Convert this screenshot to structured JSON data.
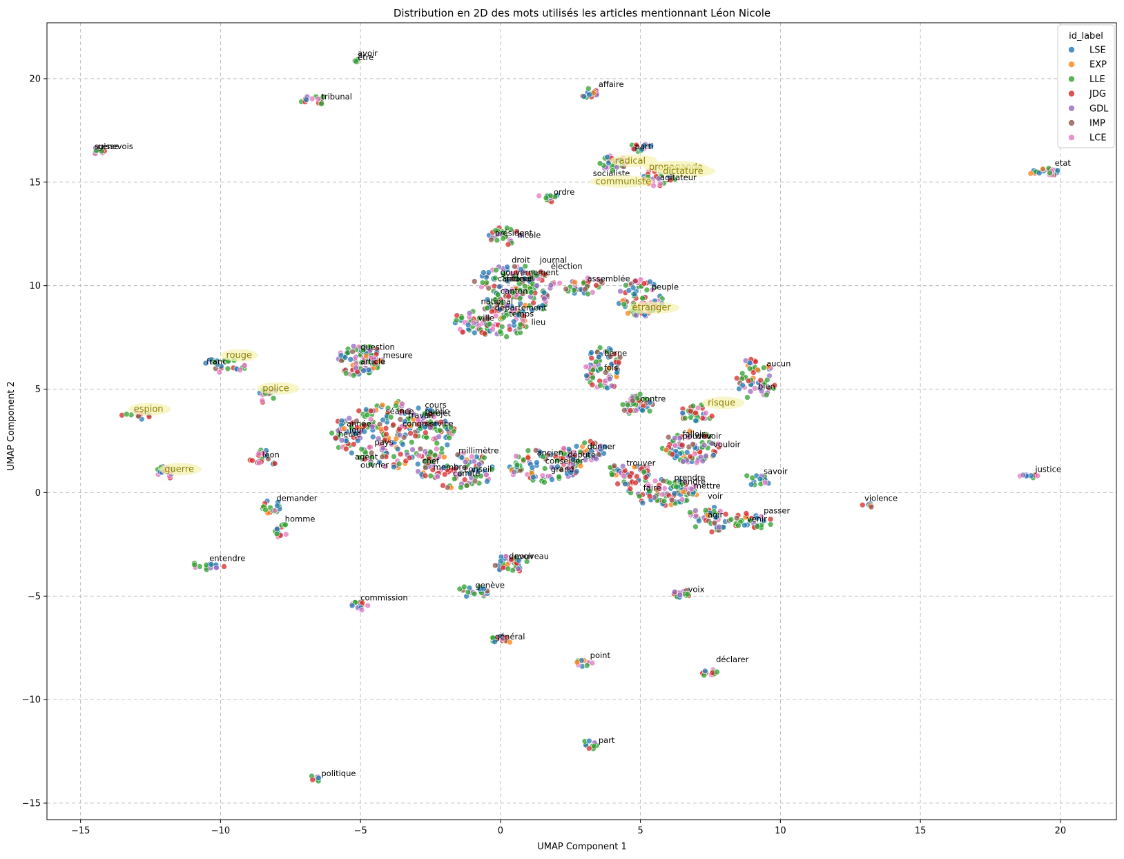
{
  "chart_data": {
    "type": "scatter",
    "title": "Distribution en 2D des mots utilisés les articles mentionnant Léon Nicole",
    "xlabel": "UMAP Component 1",
    "ylabel": "UMAP Component 2",
    "xlim": [
      -16.2,
      22.0
    ],
    "ylim": [
      -15.8,
      22.7
    ],
    "xticks": [
      -15,
      -10,
      -5,
      0,
      5,
      10,
      15,
      20
    ],
    "yticks": [
      -15,
      -10,
      -5,
      0,
      5,
      10,
      15,
      20
    ],
    "grid": true,
    "legend": {
      "title": "id_label",
      "placement": "top-right",
      "entries": [
        {
          "name": "LSE",
          "color": "#1f77b4"
        },
        {
          "name": "EXP",
          "color": "#ff7f0e"
        },
        {
          "name": "LLE",
          "color": "#2ca02c"
        },
        {
          "name": "JDG",
          "color": "#d62728"
        },
        {
          "name": "GDL",
          "color": "#9467bd"
        },
        {
          "name": "IMP",
          "color": "#8c564b"
        },
        {
          "name": "LCE",
          "color": "#e377c2"
        }
      ]
    },
    "clusters": [
      {
        "x": -5.2,
        "y": 20.9,
        "rx": 0.15,
        "ry": 0.1,
        "n": 6
      },
      {
        "x": -6.7,
        "y": 19.0,
        "rx": 0.6,
        "ry": 0.2,
        "n": 14
      },
      {
        "x": -14.4,
        "y": 16.5,
        "rx": 0.25,
        "ry": 0.15,
        "n": 10
      },
      {
        "x": 3.2,
        "y": 19.3,
        "rx": 0.3,
        "ry": 0.25,
        "n": 14
      },
      {
        "x": 5.0,
        "y": 16.7,
        "rx": 0.35,
        "ry": 0.2,
        "n": 16
      },
      {
        "x": 4.0,
        "y": 15.9,
        "rx": 0.5,
        "ry": 0.4,
        "n": 24
      },
      {
        "x": 5.6,
        "y": 15.2,
        "rx": 0.6,
        "ry": 0.4,
        "n": 24
      },
      {
        "x": 19.5,
        "y": 15.5,
        "rx": 0.65,
        "ry": 0.15,
        "n": 22
      },
      {
        "x": 1.7,
        "y": 14.3,
        "rx": 0.35,
        "ry": 0.3,
        "n": 12
      },
      {
        "x": 0.2,
        "y": 12.4,
        "rx": 0.6,
        "ry": 0.45,
        "n": 26
      },
      {
        "x": 0.5,
        "y": 9.8,
        "rx": 1.5,
        "ry": 1.2,
        "n": 150
      },
      {
        "x": -0.3,
        "y": 8.2,
        "rx": 1.4,
        "ry": 0.7,
        "n": 90
      },
      {
        "x": 2.9,
        "y": 10.0,
        "rx": 0.8,
        "ry": 0.4,
        "n": 30
      },
      {
        "x": 5.0,
        "y": 9.4,
        "rx": 0.8,
        "ry": 0.9,
        "n": 70
      },
      {
        "x": -5.0,
        "y": 6.4,
        "rx": 0.8,
        "ry": 0.8,
        "n": 90
      },
      {
        "x": 3.7,
        "y": 6.0,
        "rx": 0.7,
        "ry": 1.0,
        "n": 70
      },
      {
        "x": -9.9,
        "y": 6.1,
        "rx": 0.8,
        "ry": 0.4,
        "n": 24
      },
      {
        "x": -8.3,
        "y": 4.7,
        "rx": 0.35,
        "ry": 0.4,
        "n": 12
      },
      {
        "x": -13.0,
        "y": 3.7,
        "rx": 0.5,
        "ry": 0.2,
        "n": 10
      },
      {
        "x": -12.0,
        "y": 1.0,
        "rx": 0.35,
        "ry": 0.3,
        "n": 12
      },
      {
        "x": -8.5,
        "y": 1.6,
        "rx": 0.45,
        "ry": 0.5,
        "n": 20
      },
      {
        "x": -3.8,
        "y": 2.8,
        "rx": 2.2,
        "ry": 1.6,
        "n": 260
      },
      {
        "x": -1.6,
        "y": 1.1,
        "rx": 1.4,
        "ry": 0.9,
        "n": 90
      },
      {
        "x": 4.9,
        "y": 4.2,
        "rx": 0.6,
        "ry": 0.5,
        "n": 50
      },
      {
        "x": 7.0,
        "y": 3.8,
        "rx": 0.6,
        "ry": 0.4,
        "n": 30
      },
      {
        "x": 9.1,
        "y": 5.4,
        "rx": 0.7,
        "ry": 1.1,
        "n": 50
      },
      {
        "x": 6.8,
        "y": 2.2,
        "rx": 1.0,
        "ry": 0.8,
        "n": 80
      },
      {
        "x": 1.6,
        "y": 1.3,
        "rx": 1.3,
        "ry": 0.8,
        "n": 90
      },
      {
        "x": 3.0,
        "y": 2.0,
        "rx": 0.8,
        "ry": 0.5,
        "n": 40
      },
      {
        "x": 4.5,
        "y": 0.9,
        "rx": 0.9,
        "ry": 0.5,
        "n": 50
      },
      {
        "x": 5.8,
        "y": 0.0,
        "rx": 1.3,
        "ry": 0.6,
        "n": 90
      },
      {
        "x": 7.5,
        "y": -1.3,
        "rx": 0.8,
        "ry": 0.6,
        "n": 40
      },
      {
        "x": 9.0,
        "y": -1.4,
        "rx": 0.8,
        "ry": 0.4,
        "n": 30
      },
      {
        "x": 9.1,
        "y": 0.6,
        "rx": 0.5,
        "ry": 0.3,
        "n": 16
      },
      {
        "x": 18.9,
        "y": 0.8,
        "rx": 0.35,
        "ry": 0.12,
        "n": 8
      },
      {
        "x": 13.1,
        "y": -0.6,
        "rx": 0.25,
        "ry": 0.08,
        "n": 6
      },
      {
        "x": -8.2,
        "y": -0.7,
        "rx": 0.35,
        "ry": 0.35,
        "n": 18
      },
      {
        "x": -7.9,
        "y": -1.8,
        "rx": 0.3,
        "ry": 0.35,
        "n": 14
      },
      {
        "x": -10.5,
        "y": -3.5,
        "rx": 0.6,
        "ry": 0.2,
        "n": 16
      },
      {
        "x": 0.4,
        "y": -3.4,
        "rx": 0.6,
        "ry": 0.4,
        "n": 40
      },
      {
        "x": -1.0,
        "y": -4.8,
        "rx": 0.6,
        "ry": 0.3,
        "n": 20
      },
      {
        "x": -5.0,
        "y": -5.4,
        "rx": 0.35,
        "ry": 0.3,
        "n": 12
      },
      {
        "x": 6.5,
        "y": -4.9,
        "rx": 0.3,
        "ry": 0.2,
        "n": 16
      },
      {
        "x": 0.0,
        "y": -7.1,
        "rx": 0.4,
        "ry": 0.2,
        "n": 16
      },
      {
        "x": 3.0,
        "y": -8.2,
        "rx": 0.3,
        "ry": 0.15,
        "n": 10
      },
      {
        "x": 7.5,
        "y": -8.7,
        "rx": 0.3,
        "ry": 0.2,
        "n": 12
      },
      {
        "x": 3.2,
        "y": -12.2,
        "rx": 0.2,
        "ry": 0.25,
        "n": 10
      },
      {
        "x": -6.6,
        "y": -13.8,
        "rx": 0.2,
        "ry": 0.15,
        "n": 8
      }
    ],
    "labels": [
      {
        "text": "avoir",
        "x": -5.1,
        "y": 21.1,
        "highlight": false
      },
      {
        "text": "être",
        "x": -5.1,
        "y": 20.9,
        "highlight": false
      },
      {
        "text": "tribunal",
        "x": -6.4,
        "y": 19.0,
        "highlight": false
      },
      {
        "text": "suisse",
        "x": -14.5,
        "y": 16.6,
        "highlight": false
      },
      {
        "text": "genevois",
        "x": -14.4,
        "y": 16.6,
        "highlight": false
      },
      {
        "text": "affaire",
        "x": 3.5,
        "y": 19.6,
        "highlight": false
      },
      {
        "text": "parti",
        "x": 4.8,
        "y": 16.6,
        "highlight": false
      },
      {
        "text": "radical",
        "x": 4.1,
        "y": 15.9,
        "highlight": true
      },
      {
        "text": "propagande",
        "x": 5.3,
        "y": 15.6,
        "highlight": true
      },
      {
        "text": "dictature",
        "x": 5.8,
        "y": 15.4,
        "highlight": true
      },
      {
        "text": "socialiste",
        "x": 3.3,
        "y": 15.3,
        "highlight": false
      },
      {
        "text": "agitateur",
        "x": 5.7,
        "y": 15.1,
        "highlight": false
      },
      {
        "text": "communiste",
        "x": 3.4,
        "y": 14.9,
        "highlight": true
      },
      {
        "text": "etat",
        "x": 19.8,
        "y": 15.8,
        "highlight": false
      },
      {
        "text": "ordre",
        "x": 1.9,
        "y": 14.4,
        "highlight": false
      },
      {
        "text": "président",
        "x": -0.2,
        "y": 12.4,
        "highlight": false
      },
      {
        "text": "nicole",
        "x": 0.6,
        "y": 12.3,
        "highlight": false
      },
      {
        "text": "droit",
        "x": 0.4,
        "y": 11.1,
        "highlight": false
      },
      {
        "text": "journal",
        "x": 1.4,
        "y": 11.1,
        "highlight": false
      },
      {
        "text": "élection",
        "x": 1.8,
        "y": 10.8,
        "highlight": false
      },
      {
        "text": "gouvernement",
        "x": 0.0,
        "y": 10.5,
        "highlight": false
      },
      {
        "text": "fédéral",
        "x": 0.2,
        "y": 10.2,
        "highlight": false
      },
      {
        "text": "cantonal",
        "x": -0.1,
        "y": 10.2,
        "highlight": false
      },
      {
        "text": "assemblée",
        "x": 3.1,
        "y": 10.2,
        "highlight": false
      },
      {
        "text": "peuple",
        "x": 5.4,
        "y": 9.8,
        "highlight": false
      },
      {
        "text": "canton",
        "x": 0.0,
        "y": 9.6,
        "highlight": false
      },
      {
        "text": "national",
        "x": -0.7,
        "y": 9.1,
        "highlight": false
      },
      {
        "text": "département",
        "x": -0.2,
        "y": 8.8,
        "highlight": false
      },
      {
        "text": "étranger",
        "x": 4.7,
        "y": 8.8,
        "highlight": true
      },
      {
        "text": "temps",
        "x": 0.3,
        "y": 8.5,
        "highlight": false
      },
      {
        "text": "ville",
        "x": -0.8,
        "y": 8.3,
        "highlight": false
      },
      {
        "text": "lieu",
        "x": 1.1,
        "y": 8.1,
        "highlight": false
      },
      {
        "text": "question",
        "x": -5.0,
        "y": 6.9,
        "highlight": false
      },
      {
        "text": "mesure",
        "x": -4.2,
        "y": 6.5,
        "highlight": false
      },
      {
        "text": "article",
        "x": -5.0,
        "y": 6.2,
        "highlight": false
      },
      {
        "text": "berne",
        "x": 3.7,
        "y": 6.6,
        "highlight": false
      },
      {
        "text": "fois",
        "x": 3.7,
        "y": 5.9,
        "highlight": false
      },
      {
        "text": "rouge",
        "x": -9.8,
        "y": 6.5,
        "highlight": true
      },
      {
        "text": "franc",
        "x": -10.5,
        "y": 6.2,
        "highlight": false
      },
      {
        "text": "aucun",
        "x": 9.5,
        "y": 6.1,
        "highlight": false
      },
      {
        "text": "police",
        "x": -8.5,
        "y": 4.9,
        "highlight": true
      },
      {
        "text": "bien",
        "x": 9.2,
        "y": 5.0,
        "highlight": false
      },
      {
        "text": "contre",
        "x": 5.0,
        "y": 4.4,
        "highlight": false
      },
      {
        "text": "risque",
        "x": 7.4,
        "y": 4.2,
        "highlight": true
      },
      {
        "text": "espion",
        "x": -13.1,
        "y": 3.9,
        "highlight": true
      },
      {
        "text": "cours",
        "x": -2.7,
        "y": 4.1,
        "highlight": false
      },
      {
        "text": "séance",
        "x": -4.1,
        "y": 3.8,
        "highlight": false
      },
      {
        "text": "public",
        "x": -2.7,
        "y": 3.8,
        "highlight": false
      },
      {
        "text": "travail",
        "x": -3.3,
        "y": 3.6,
        "highlight": false
      },
      {
        "text": "projet",
        "x": -2.6,
        "y": 3.7,
        "highlight": false
      },
      {
        "text": "année",
        "x": -5.5,
        "y": 3.2,
        "highlight": false
      },
      {
        "text": "congrès",
        "x": -3.5,
        "y": 3.2,
        "highlight": false
      },
      {
        "text": "service",
        "x": -2.7,
        "y": 3.2,
        "highlight": false
      },
      {
        "text": "jour",
        "x": -5.4,
        "y": 2.9,
        "highlight": false
      },
      {
        "text": "heure",
        "x": -5.8,
        "y": 2.7,
        "highlight": false
      },
      {
        "text": "falloir",
        "x": 6.5,
        "y": 2.7,
        "highlight": false
      },
      {
        "text": "pouvoir",
        "x": 6.5,
        "y": 2.6,
        "highlight": false
      },
      {
        "text": "devoir",
        "x": 7.0,
        "y": 2.6,
        "highlight": false
      },
      {
        "text": "pays",
        "x": -4.5,
        "y": 2.3,
        "highlight": false
      },
      {
        "text": "vouloir",
        "x": 7.6,
        "y": 2.2,
        "highlight": false
      },
      {
        "text": "millimètre",
        "x": -1.5,
        "y": 1.9,
        "highlight": false
      },
      {
        "text": "donner",
        "x": 3.1,
        "y": 2.1,
        "highlight": false
      },
      {
        "text": "ancien",
        "x": 1.3,
        "y": 1.8,
        "highlight": false
      },
      {
        "text": "député",
        "x": 2.4,
        "y": 1.7,
        "highlight": false
      },
      {
        "text": "agent",
        "x": -5.2,
        "y": 1.6,
        "highlight": false
      },
      {
        "text": "léon",
        "x": -8.5,
        "y": 1.7,
        "highlight": false
      },
      {
        "text": "conseiller",
        "x": 1.6,
        "y": 1.4,
        "highlight": false
      },
      {
        "text": "chef",
        "x": -2.8,
        "y": 1.4,
        "highlight": false
      },
      {
        "text": "trouver",
        "x": 4.5,
        "y": 1.3,
        "highlight": false
      },
      {
        "text": "ouvrier",
        "x": -5.0,
        "y": 1.2,
        "highlight": false
      },
      {
        "text": "guerre",
        "x": -12.0,
        "y": 1.0,
        "highlight": true
      },
      {
        "text": "membre",
        "x": -2.4,
        "y": 1.1,
        "highlight": false
      },
      {
        "text": "grand",
        "x": 1.8,
        "y": 1.0,
        "highlight": false
      },
      {
        "text": "conseil",
        "x": -1.3,
        "y": 1.0,
        "highlight": false
      },
      {
        "text": "comité",
        "x": -1.7,
        "y": 0.8,
        "highlight": false
      },
      {
        "text": "savoir",
        "x": 9.4,
        "y": 0.9,
        "highlight": false
      },
      {
        "text": "justice",
        "x": 19.1,
        "y": 1.0,
        "highlight": false
      },
      {
        "text": "prendre",
        "x": 6.2,
        "y": 0.6,
        "highlight": false
      },
      {
        "text": "rendre",
        "x": 6.4,
        "y": 0.4,
        "highlight": false
      },
      {
        "text": "mettre",
        "x": 6.9,
        "y": 0.2,
        "highlight": false
      },
      {
        "text": "faire",
        "x": 5.1,
        "y": 0.1,
        "highlight": false
      },
      {
        "text": "voir",
        "x": 7.4,
        "y": -0.3,
        "highlight": false
      },
      {
        "text": "violence",
        "x": 13.0,
        "y": -0.4,
        "highlight": false
      },
      {
        "text": "demander",
        "x": -8.0,
        "y": -0.4,
        "highlight": false
      },
      {
        "text": "passer",
        "x": 9.4,
        "y": -1.0,
        "highlight": false
      },
      {
        "text": "agir",
        "x": 7.4,
        "y": -1.2,
        "highlight": false
      },
      {
        "text": "venir",
        "x": 8.8,
        "y": -1.4,
        "highlight": false
      },
      {
        "text": "homme",
        "x": -7.7,
        "y": -1.4,
        "highlight": false
      },
      {
        "text": "entendre",
        "x": -10.4,
        "y": -3.3,
        "highlight": false
      },
      {
        "text": "devoir",
        "x": 0.3,
        "y": -3.2,
        "highlight": false
      },
      {
        "text": "nouveau",
        "x": 0.5,
        "y": -3.2,
        "highlight": false
      },
      {
        "text": "genève",
        "x": -0.9,
        "y": -4.6,
        "highlight": false
      },
      {
        "text": "voix",
        "x": 6.7,
        "y": -4.8,
        "highlight": false
      },
      {
        "text": "commission",
        "x": -5.0,
        "y": -5.2,
        "highlight": false
      },
      {
        "text": "général",
        "x": -0.2,
        "y": -7.1,
        "highlight": false
      },
      {
        "text": "point",
        "x": 3.2,
        "y": -8.0,
        "highlight": false
      },
      {
        "text": "déclarer",
        "x": 7.7,
        "y": -8.2,
        "highlight": false
      },
      {
        "text": "part",
        "x": 3.5,
        "y": -12.1,
        "highlight": false
      },
      {
        "text": "politique",
        "x": -6.4,
        "y": -13.7,
        "highlight": false
      }
    ]
  }
}
